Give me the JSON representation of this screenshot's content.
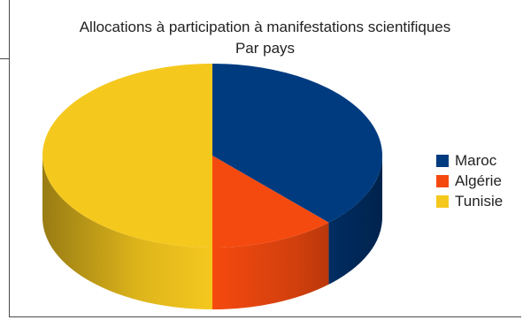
{
  "chart_data": {
    "type": "pie",
    "title": "Allocations à participation à manifestations scientifiques",
    "subtitle": "Par pays",
    "categories": [
      "Maroc",
      "Algérie",
      "Tunisie"
    ],
    "values": [
      38,
      12,
      50
    ],
    "colors": [
      "#003b80",
      "#f54a0f",
      "#f5c81e"
    ],
    "style": "3d",
    "legend_position": "right"
  }
}
